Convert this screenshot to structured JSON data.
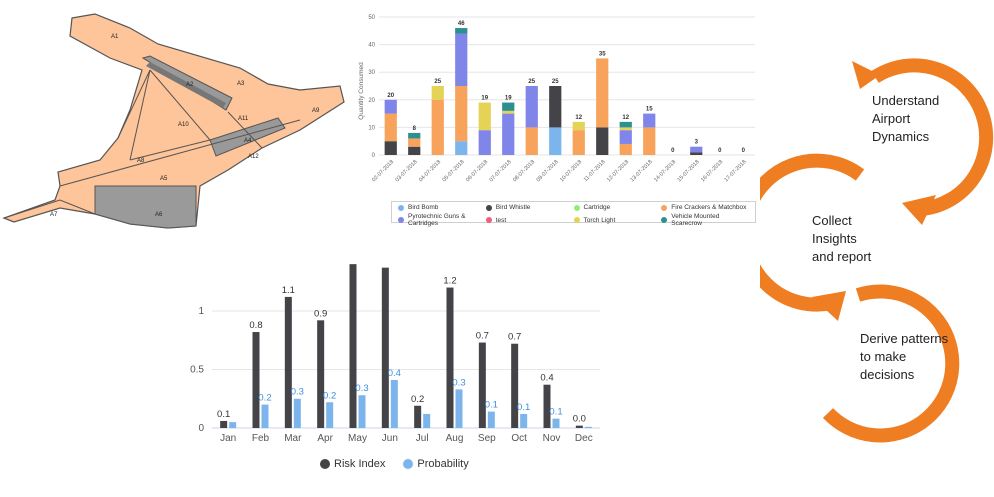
{
  "map": {
    "zones": [
      "A1",
      "A2",
      "A3",
      "A4",
      "A5",
      "A6",
      "A7",
      "A8",
      "A9",
      "A10",
      "A11",
      "A12"
    ]
  },
  "chart_data": [
    {
      "type": "bar",
      "stacked": true,
      "ylabel": "Quantity Consumed",
      "ylim": [
        0,
        50
      ],
      "yticks": [
        0,
        10,
        20,
        30,
        40,
        50
      ],
      "categories": [
        "02-07-2018",
        "03-07-2018",
        "04-07-2018",
        "05-07-2018",
        "06-07-2018",
        "07-07-2018",
        "08-07-2018",
        "09-07-2018",
        "10-07-2018",
        "11-07-2018",
        "12-07-2018",
        "13-07-2018",
        "14-07-2018",
        "15-07-2018",
        "16-07-2018",
        "17-07-2018"
      ],
      "totals": [
        20,
        8,
        25,
        46,
        19,
        19,
        25,
        25,
        12,
        35,
        12,
        15,
        0,
        3,
        0,
        0
      ],
      "series": [
        {
          "name": "Bird Bomb",
          "color": "#7cb5ec",
          "values": [
            0,
            0,
            0,
            5,
            0,
            0,
            0,
            10,
            0,
            0,
            0,
            0,
            0,
            0,
            0,
            0
          ]
        },
        {
          "name": "Bird Whistle",
          "color": "#434348",
          "values": [
            5,
            3,
            0,
            0,
            0,
            0,
            0,
            15,
            0,
            10,
            0,
            0,
            0,
            1,
            0,
            0
          ]
        },
        {
          "name": "Cartridge",
          "color": "#90ed7d",
          "values": [
            0,
            0,
            0,
            0,
            0,
            0,
            0,
            0,
            0,
            0,
            0,
            0,
            0,
            0,
            0,
            0
          ]
        },
        {
          "name": "Fire Crackers & Matchbox",
          "color": "#f7a35c",
          "values": [
            10,
            3,
            20,
            20,
            0,
            0,
            10,
            0,
            9,
            25,
            4,
            10,
            0,
            0,
            0,
            0
          ]
        },
        {
          "name": "Pyrotechnic Guns & Cartridges",
          "color": "#8085e9",
          "values": [
            5,
            0,
            0,
            19,
            9,
            15,
            15,
            0,
            0,
            0,
            5,
            5,
            0,
            2,
            0,
            0
          ]
        },
        {
          "name": "test",
          "color": "#f15c80",
          "values": [
            0,
            0,
            0,
            0,
            0,
            0,
            0,
            0,
            0,
            0,
            0,
            0,
            0,
            0,
            0,
            0
          ]
        },
        {
          "name": "Torch Light",
          "color": "#e4d354",
          "values": [
            0,
            0,
            5,
            0,
            10,
            1,
            0,
            0,
            3,
            0,
            1,
            0,
            0,
            0,
            0,
            0
          ]
        },
        {
          "name": "Vehicle Mounted Scarecrow",
          "color": "#2b908f",
          "values": [
            0,
            2,
            0,
            2,
            0,
            3,
            0,
            0,
            0,
            0,
            2,
            0,
            0,
            0,
            0,
            0
          ]
        }
      ]
    },
    {
      "type": "bar",
      "ylim": [
        0,
        1.35
      ],
      "yticks": [
        0,
        0.5,
        1
      ],
      "categories": [
        "Jan",
        "Feb",
        "Mar",
        "Apr",
        "May",
        "Jun",
        "Jul",
        "Aug",
        "Sep",
        "Oct",
        "Nov",
        "Dec"
      ],
      "series": [
        {
          "name": "Risk Index",
          "color": "#434348",
          "values": [
            0.06,
            0.82,
            1.12,
            0.92,
            1.4,
            1.37,
            0.19,
            1.2,
            0.73,
            0.72,
            0.37,
            0.02
          ],
          "labels": [
            "0.1",
            "0.8",
            "1.1",
            "0.9",
            "",
            "",
            "0.2",
            "1.2",
            "0.7",
            "0.7",
            "0.4",
            "0.0"
          ]
        },
        {
          "name": "Probability",
          "color": "#7cb5ec",
          "values": [
            0.05,
            0.2,
            0.25,
            0.22,
            0.28,
            0.41,
            0.12,
            0.33,
            0.14,
            0.12,
            0.08,
            0.01
          ],
          "labels": [
            "",
            "0.2",
            "0.3",
            "0.2",
            "0.3",
            "0.4",
            "",
            "0.3",
            "0.1",
            "0.1",
            "0.1",
            ""
          ]
        }
      ]
    }
  ],
  "cycle": {
    "color": "#ef7d22",
    "steps": [
      {
        "lines": [
          "Understand",
          "Airport",
          "Dynamics"
        ]
      },
      {
        "lines": [
          "Collect",
          "Insights",
          "and report"
        ]
      },
      {
        "lines": [
          "Derive patterns",
          "to make",
          "decisions"
        ]
      }
    ]
  }
}
